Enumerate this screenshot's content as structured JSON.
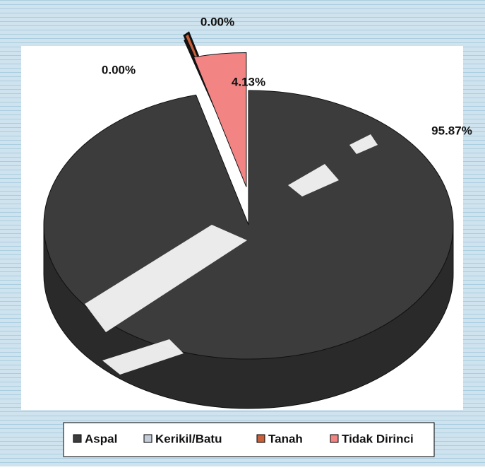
{
  "chart_data": {
    "type": "pie",
    "categories": [
      "Aspal",
      "Kerikil/Batu",
      "Tanah",
      "Tidak Dirinci"
    ],
    "values": [
      95.87,
      0,
      0,
      4.13
    ],
    "value_labels": [
      "95.87%",
      "0.00%",
      "0.00%",
      "4.13%"
    ],
    "colors": [
      "#3c3c3c",
      "#c4ccd8",
      "#c8603c",
      "#f28484"
    ],
    "legend": "bottom"
  }
}
